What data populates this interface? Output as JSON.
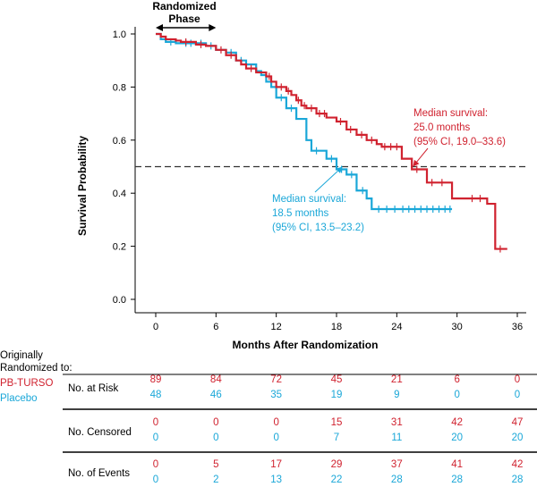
{
  "chart_data": {
    "type": "line",
    "subtype": "kaplan-meier",
    "ylabel": "Survival Probability",
    "xlabel": "Months After Randomization",
    "xlim": [
      0,
      36
    ],
    "ylim": [
      0.0,
      1.0
    ],
    "x_ticks": [
      0,
      6,
      12,
      18,
      24,
      30,
      36
    ],
    "y_ticks": [
      0.0,
      0.2,
      0.4,
      0.6,
      0.8,
      1.0
    ],
    "y_tick_labels": [
      "0.0",
      "0.2",
      "0.4",
      "0.6",
      "0.8",
      "1.0"
    ],
    "reference_line_y": 0.5,
    "phase_label_line1": "Randomized",
    "phase_label_line2": "Phase",
    "phase_range": [
      0,
      6
    ],
    "series": [
      {
        "name": "PB-TURSO",
        "color": "#d0222f",
        "steps": [
          [
            0,
            1.0
          ],
          [
            0.5,
            0.99
          ],
          [
            1,
            0.98
          ],
          [
            2,
            0.975
          ],
          [
            2.5,
            0.97
          ],
          [
            4,
            0.96
          ],
          [
            5,
            0.955
          ],
          [
            6,
            0.94
          ],
          [
            7,
            0.92
          ],
          [
            8,
            0.9
          ],
          [
            8.5,
            0.885
          ],
          [
            9,
            0.87
          ],
          [
            10,
            0.855
          ],
          [
            11,
            0.84
          ],
          [
            11.5,
            0.82
          ],
          [
            12,
            0.8
          ],
          [
            13,
            0.785
          ],
          [
            13.5,
            0.77
          ],
          [
            14,
            0.75
          ],
          [
            14.5,
            0.73
          ],
          [
            15,
            0.72
          ],
          [
            16,
            0.7
          ],
          [
            17,
            0.685
          ],
          [
            18,
            0.67
          ],
          [
            19,
            0.64
          ],
          [
            20,
            0.62
          ],
          [
            21,
            0.6
          ],
          [
            22,
            0.585
          ],
          [
            22.5,
            0.575
          ],
          [
            24.5,
            0.53
          ],
          [
            25.5,
            0.49
          ],
          [
            27,
            0.44
          ],
          [
            29.5,
            0.38
          ],
          [
            33,
            0.36
          ],
          [
            33.8,
            0.19
          ],
          [
            35,
            0.19
          ]
        ],
        "censor_times": [
          3,
          4.5,
          6.5,
          7.5,
          9.5,
          11.3,
          12.5,
          13.2,
          14.2,
          14.8,
          15.5,
          16.3,
          16.8,
          18.4,
          19.4,
          20.5,
          21.5,
          22.8,
          23.4,
          24,
          26,
          27.5,
          28.5,
          31.5,
          32.3,
          34.3
        ]
      },
      {
        "name": "Placebo",
        "color": "#1aa7d8",
        "steps": [
          [
            0,
            1.0
          ],
          [
            0.5,
            0.98
          ],
          [
            1,
            0.97
          ],
          [
            2,
            0.965
          ],
          [
            5,
            0.955
          ],
          [
            6,
            0.94
          ],
          [
            7,
            0.93
          ],
          [
            8,
            0.9
          ],
          [
            9,
            0.885
          ],
          [
            10,
            0.86
          ],
          [
            10.5,
            0.845
          ],
          [
            11,
            0.82
          ],
          [
            11.5,
            0.8
          ],
          [
            12,
            0.76
          ],
          [
            13,
            0.72
          ],
          [
            14,
            0.68
          ],
          [
            15,
            0.6
          ],
          [
            15.5,
            0.56
          ],
          [
            17,
            0.53
          ],
          [
            18,
            0.49
          ],
          [
            19,
            0.47
          ],
          [
            20,
            0.41
          ],
          [
            21,
            0.38
          ],
          [
            21.5,
            0.34
          ],
          [
            29.5,
            0.34
          ]
        ],
        "censor_times": [
          1.5,
          3,
          3.5,
          4.5,
          5.5,
          7.5,
          8.5,
          12.5,
          13.5,
          16,
          17.5,
          18.5,
          19.5,
          20.6,
          22.2,
          23,
          23.8,
          24.6,
          25.2,
          25.8,
          26.4,
          27,
          27.6,
          28.2,
          28.8,
          29.3
        ]
      }
    ],
    "annotations": [
      {
        "id": "turso",
        "lines": [
          "Median survival:",
          "25.0 months",
          "(95% CI, 19.0–33.6)"
        ],
        "target": [
          25.6,
          0.5
        ]
      },
      {
        "id": "placebo",
        "lines": [
          "Median survival:",
          "18.5 months",
          "(95% CI, 13.5–23.2)"
        ],
        "target": [
          18.6,
          0.5
        ]
      }
    ]
  },
  "risk_table": {
    "header_line1": "Originally",
    "header_line2": "Randomized to:",
    "group_labels": [
      "PB-TURSO",
      "Placebo"
    ],
    "rows": [
      {
        "label": "No. at Risk",
        "turso": [
          "89",
          "84",
          "72",
          "45",
          "21",
          "6",
          "0"
        ],
        "placebo": [
          "48",
          "46",
          "35",
          "19",
          "9",
          "0",
          "0"
        ]
      },
      {
        "label": "No. Censored",
        "turso": [
          "0",
          "0",
          "0",
          "15",
          "31",
          "42",
          "47"
        ],
        "placebo": [
          "0",
          "0",
          "0",
          "7",
          "11",
          "20",
          "20"
        ]
      },
      {
        "label": "No. of Events",
        "turso": [
          "0",
          "5",
          "17",
          "29",
          "37",
          "41",
          "42"
        ],
        "placebo": [
          "0",
          "2",
          "13",
          "22",
          "28",
          "28",
          "28"
        ]
      }
    ]
  }
}
